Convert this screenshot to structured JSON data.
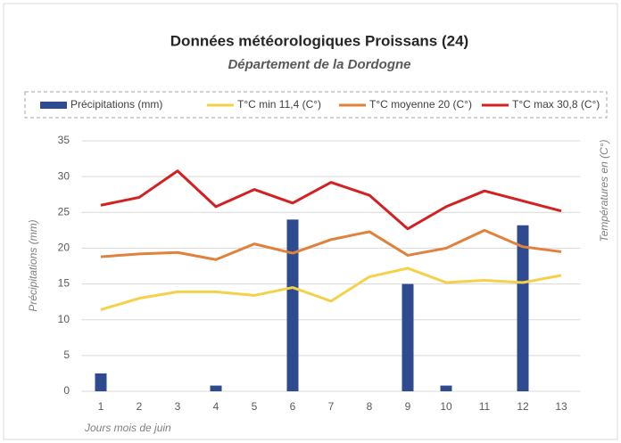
{
  "chart_data": {
    "type": "combo",
    "title": "Données météorologiques Proissans (24)",
    "subtitle": "Département de la Dordogne",
    "x_label": "Jours mois de juin",
    "y_label": "Précipitations (mm)",
    "y2_label": "Températures en  (C°)",
    "categories": [
      "1",
      "2",
      "3",
      "4",
      "5",
      "6",
      "7",
      "8",
      "9",
      "10",
      "11",
      "12",
      "13"
    ],
    "ylim": [
      0,
      35
    ],
    "yticks": [
      0,
      5,
      10,
      15,
      20,
      25,
      30,
      35
    ],
    "grid": true,
    "series": [
      {
        "name": "Précipitations (mm)",
        "type": "bar",
        "color": "#2f4b8f",
        "values": [
          2.5,
          0,
          0,
          0.8,
          0,
          24,
          0,
          0,
          15,
          0.8,
          0,
          23.2,
          0
        ]
      },
      {
        "name": "T°C min 11,4 (C°)",
        "type": "line",
        "color": "#f5d14a",
        "values": [
          11.4,
          13,
          13.9,
          13.9,
          13.4,
          14.5,
          12.6,
          16,
          17.2,
          15.2,
          15.5,
          15.2,
          16.2
        ]
      },
      {
        "name": "T°C moyenne 20 (C°)",
        "type": "line",
        "color": "#e0813c",
        "values": [
          18.8,
          19.2,
          19.4,
          18.4,
          20.6,
          19.3,
          21.2,
          22.3,
          19,
          20,
          22.5,
          20.2,
          19.5
        ]
      },
      {
        "name": "T°C max 30,8 (C°)",
        "type": "line",
        "color": "#d42020",
        "values": [
          26,
          27.1,
          30.8,
          25.8,
          28.2,
          26.3,
          29.2,
          27.4,
          22.7,
          25.8,
          28,
          26.6,
          25.2
        ]
      }
    ]
  }
}
